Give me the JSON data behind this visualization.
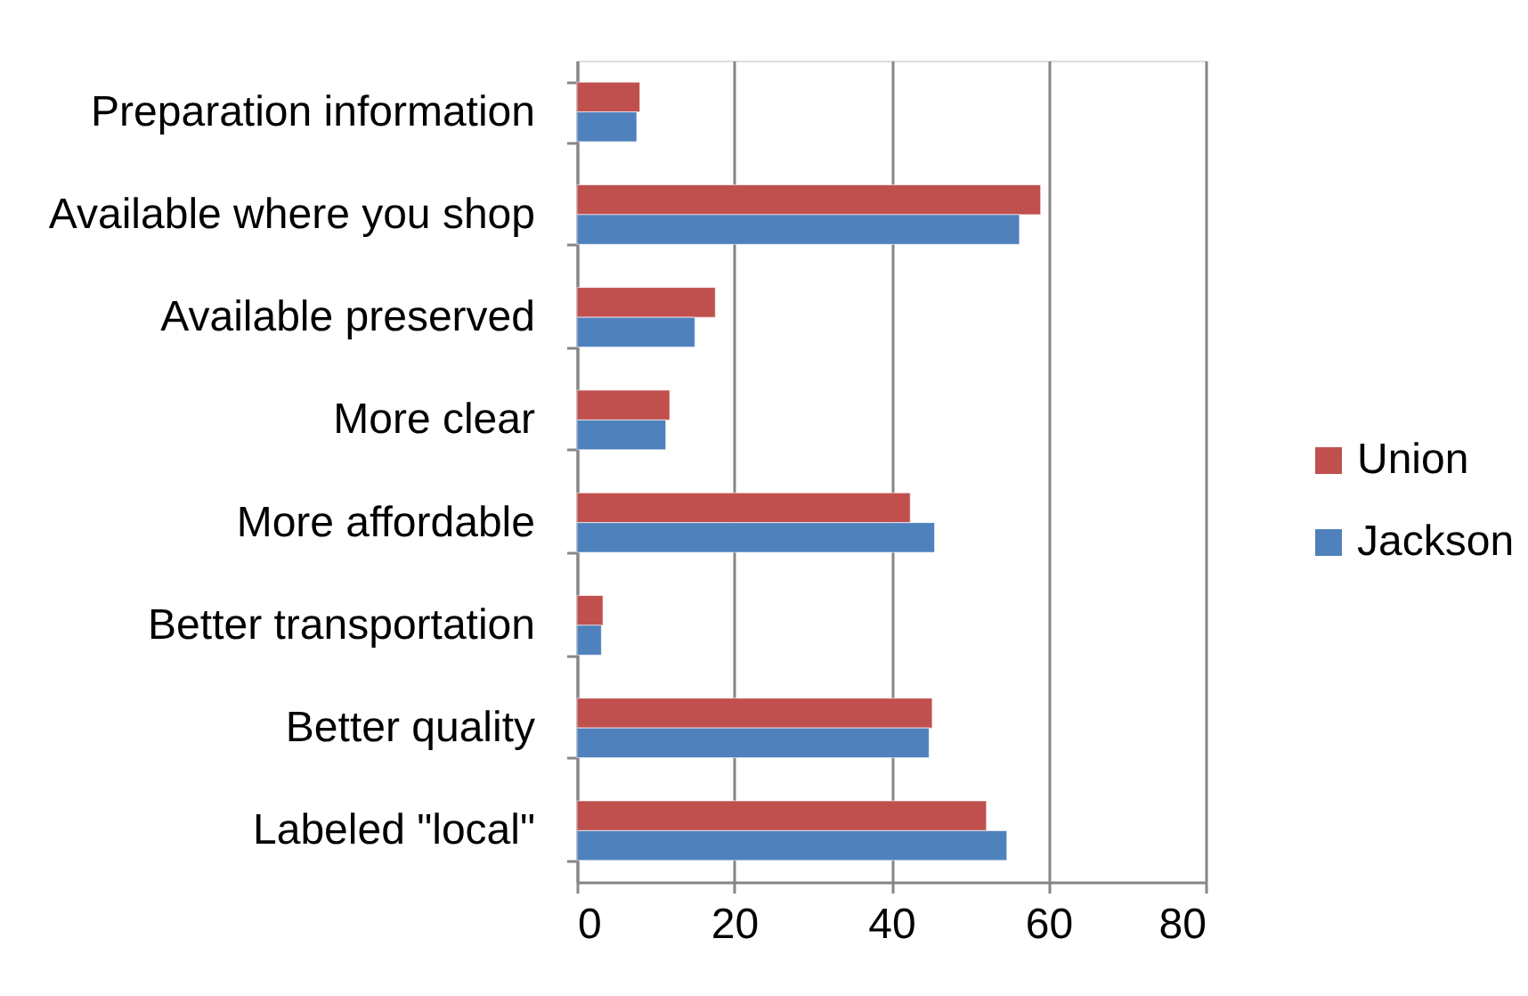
{
  "chart_data": {
    "type": "bar",
    "orientation": "horizontal",
    "categories": [
      "Preparation information",
      "Available where you shop",
      "Available preserved",
      "More clear",
      "More affordable",
      "Better transportation",
      "Better quality",
      "Labeled \"local\""
    ],
    "series": [
      {
        "name": "Union",
        "color": "#c0504d",
        "values": [
          8.0,
          59.0,
          17.6,
          11.8,
          42.4,
          3.3,
          45.2,
          52.1
        ]
      },
      {
        "name": "Jackson",
        "color": "#4f81bd",
        "values": [
          7.6,
          56.3,
          15.0,
          11.3,
          45.5,
          3.1,
          44.8,
          54.7
        ]
      }
    ],
    "xlim": [
      0,
      80
    ],
    "xticks": [
      0,
      20,
      40,
      60,
      80
    ],
    "grid": "x",
    "legend": "right"
  }
}
